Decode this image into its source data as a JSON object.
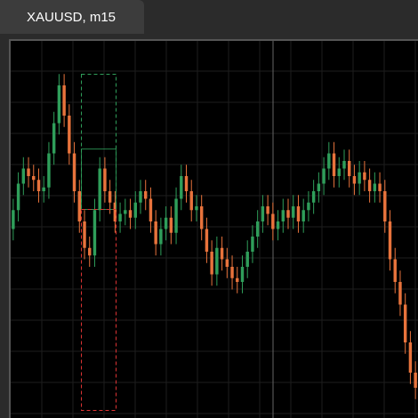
{
  "tab": {
    "title": "XAUUSD, m15"
  },
  "chart_data": {
    "type": "candlestick",
    "up_color": "#2f9e5a",
    "down_color": "#e8733c",
    "ylim": [
      0,
      100
    ],
    "open": [
      50,
      55,
      62,
      66,
      64,
      63,
      60,
      61,
      70,
      78,
      88,
      80,
      70,
      60,
      52,
      45,
      43,
      55,
      66,
      60,
      57,
      52,
      54,
      55,
      53,
      57,
      60,
      58,
      52,
      46,
      50,
      53,
      49,
      58,
      64,
      60,
      55,
      56,
      50,
      44,
      38,
      45,
      42,
      40,
      37,
      36,
      40,
      44,
      48,
      52,
      56,
      54,
      50,
      52,
      55,
      53,
      56,
      52,
      55,
      57,
      60,
      62,
      66,
      70,
      64,
      66,
      68,
      64,
      62,
      65,
      63,
      60,
      62,
      60,
      52,
      42,
      36,
      30,
      20,
      12
    ],
    "high": [
      58,
      65,
      69,
      69,
      67,
      66,
      64,
      73,
      81,
      91,
      91,
      83,
      73,
      63,
      55,
      48,
      58,
      69,
      69,
      63,
      60,
      57,
      58,
      58,
      60,
      63,
      63,
      61,
      55,
      53,
      56,
      56,
      61,
      67,
      67,
      63,
      59,
      59,
      53,
      47,
      48,
      48,
      45,
      43,
      40,
      43,
      47,
      51,
      55,
      59,
      59,
      57,
      55,
      58,
      58,
      59,
      59,
      58,
      60,
      63,
      65,
      69,
      73,
      73,
      69,
      71,
      71,
      67,
      68,
      68,
      66,
      65,
      65,
      63,
      55,
      45,
      39,
      33,
      23,
      15
    ],
    "low": [
      47,
      52,
      59,
      61,
      60,
      57,
      57,
      58,
      67,
      75,
      77,
      67,
      57,
      49,
      42,
      40,
      40,
      52,
      57,
      54,
      49,
      49,
      51,
      50,
      50,
      54,
      55,
      49,
      43,
      43,
      47,
      46,
      46,
      55,
      57,
      52,
      52,
      47,
      41,
      35,
      35,
      39,
      37,
      34,
      33,
      33,
      37,
      41,
      45,
      49,
      51,
      47,
      47,
      49,
      50,
      50,
      49,
      49,
      52,
      54,
      57,
      59,
      63,
      61,
      61,
      63,
      61,
      59,
      59,
      60,
      57,
      57,
      57,
      49,
      39,
      33,
      27,
      17,
      9,
      5
    ],
    "close": [
      55,
      62,
      66,
      64,
      63,
      60,
      61,
      70,
      78,
      88,
      80,
      70,
      60,
      52,
      45,
      43,
      55,
      66,
      60,
      57,
      52,
      54,
      55,
      53,
      57,
      60,
      58,
      52,
      46,
      50,
      53,
      49,
      58,
      64,
      60,
      55,
      56,
      50,
      44,
      38,
      45,
      42,
      40,
      37,
      36,
      40,
      44,
      48,
      52,
      56,
      54,
      50,
      52,
      55,
      53,
      56,
      52,
      55,
      57,
      60,
      62,
      66,
      70,
      64,
      66,
      68,
      64,
      62,
      65,
      63,
      60,
      62,
      60,
      52,
      42,
      36,
      30,
      20,
      12,
      8
    ]
  }
}
